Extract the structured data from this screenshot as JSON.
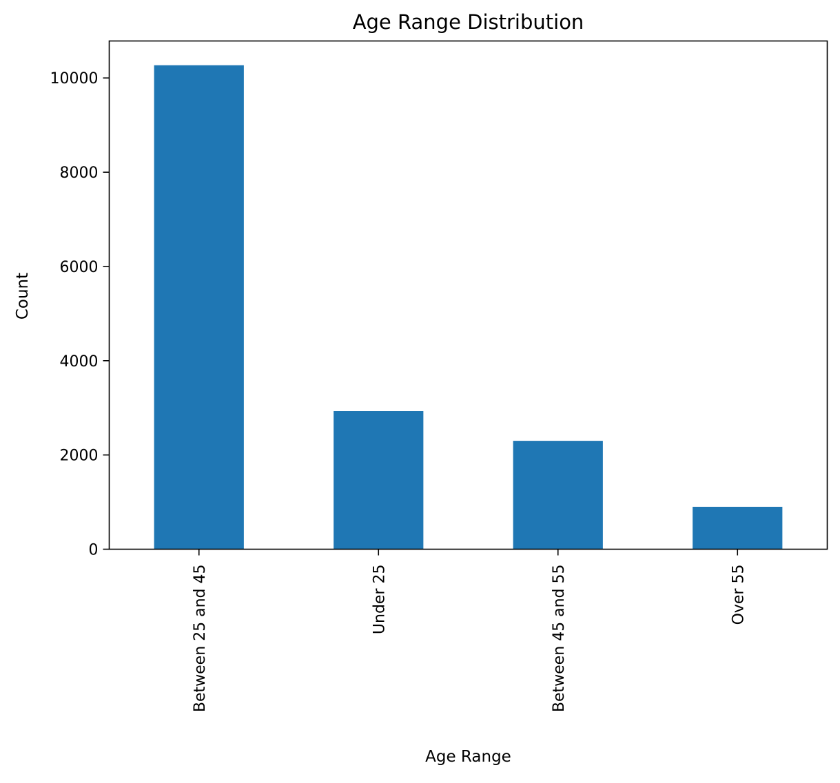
{
  "chart_data": {
    "type": "bar",
    "title": "Age Range Distribution",
    "xlabel": "Age Range",
    "ylabel": "Count",
    "categories": [
      "Between 25 and 45",
      "Under 25",
      "Between 45 and 55",
      "Over 55"
    ],
    "values": [
      10270,
      2930,
      2300,
      900
    ],
    "ylim": [
      0,
      10785
    ],
    "yticks": [
      0,
      2000,
      4000,
      6000,
      8000,
      10000
    ],
    "ytick_labels": [
      "0",
      "2000",
      "4000",
      "6000",
      "8000",
      "10000"
    ],
    "bar_color": "#1f77b4",
    "grid": false,
    "legend": "none"
  }
}
